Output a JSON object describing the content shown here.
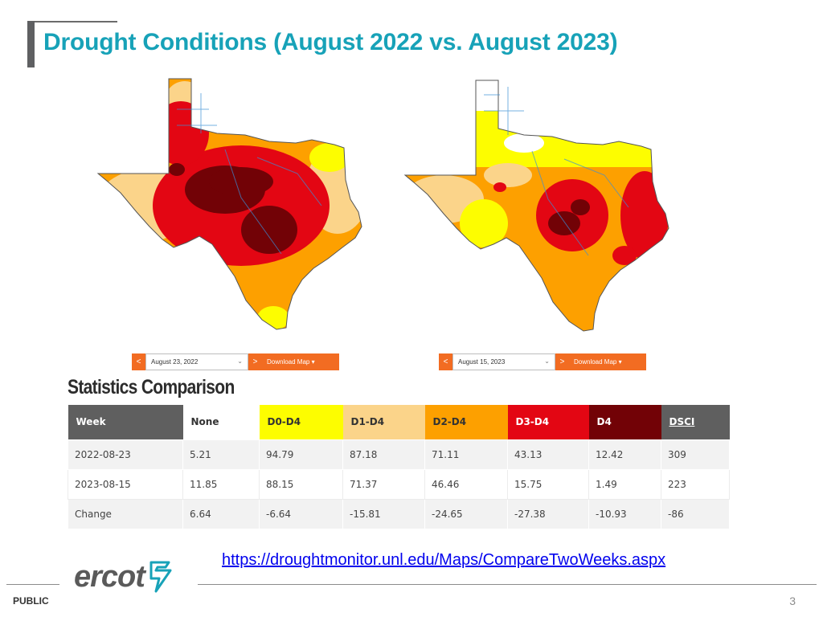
{
  "slide": {
    "title": "Drought Conditions (August 2022 vs. August 2023)",
    "footer_label": "PUBLIC",
    "page_number": "3",
    "logo_text": "ercot",
    "source_url": "https://droughtmonitor.unl.edu/Maps/CompareTwoWeeks.aspx"
  },
  "maps": {
    "left": {
      "prev_label": "<",
      "date": "August 23, 2022",
      "next_label": ">",
      "download_label": "Download Map ▾"
    },
    "right": {
      "prev_label": "<",
      "date": "August 15, 2023",
      "next_label": ">",
      "download_label": "Download Map ▾"
    }
  },
  "stats": {
    "heading": "Statistics Comparison",
    "columns": [
      "Week",
      "None",
      "D0-D4",
      "D1-D4",
      "D2-D4",
      "D3-D4",
      "D4",
      "DSCI"
    ],
    "column_colors": [
      "#5f5f5f",
      "#ffffff",
      "#fdfd00",
      "#fbd48a",
      "#fda000",
      "#e30613",
      "#720206",
      "#5f5f5f"
    ],
    "rows": [
      [
        "2022-08-23",
        "5.21",
        "94.79",
        "87.18",
        "71.11",
        "43.13",
        "12.42",
        "309"
      ],
      [
        "2023-08-15",
        "11.85",
        "88.15",
        "71.37",
        "46.46",
        "15.75",
        "1.49",
        "223"
      ],
      [
        "Change",
        "6.64",
        "-6.64",
        "-15.81",
        "-24.65",
        "-27.38",
        "-10.93",
        "-86"
      ]
    ]
  },
  "colors": {
    "title": "#17a2b8",
    "accent_orange": "#f26c22",
    "d0": "#fdfd00",
    "d1": "#fbd48a",
    "d2": "#fda000",
    "d3": "#e30613",
    "d4": "#720206"
  }
}
